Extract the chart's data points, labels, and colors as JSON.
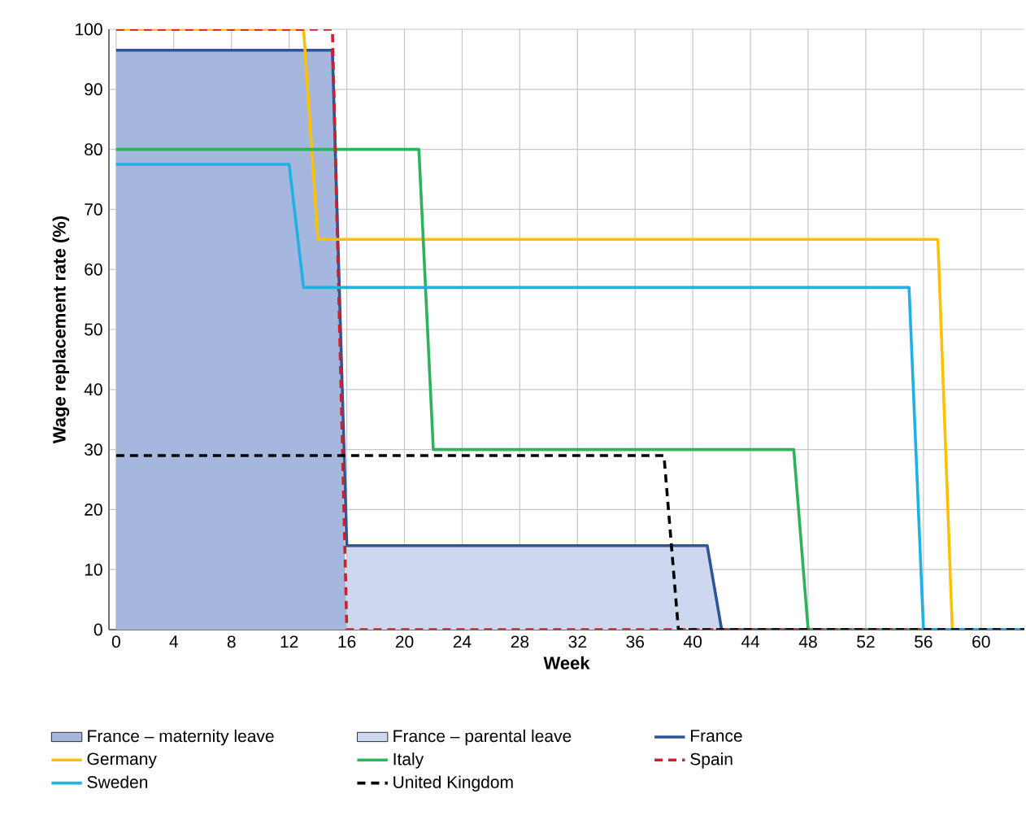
{
  "chart_data": {
    "type": "line",
    "xlabel": "Week",
    "ylabel": "Wage replacement rate (%)",
    "xlim": [
      -0.5,
      63
    ],
    "ylim": [
      0,
      100
    ],
    "xticks": [
      0,
      4,
      8,
      12,
      16,
      20,
      24,
      28,
      32,
      36,
      40,
      44,
      48,
      52,
      56,
      60
    ],
    "yticks": [
      0,
      10,
      20,
      30,
      40,
      50,
      60,
      70,
      80,
      90,
      100
    ],
    "grid": true,
    "legend": "bottom",
    "series": [
      {
        "name": "France – maternity leave",
        "type": "area",
        "color": "#a5b7dd",
        "x": [
          0,
          15,
          16
        ],
        "values": [
          96.5,
          96.5,
          0
        ]
      },
      {
        "name": "France – parental leave",
        "type": "area",
        "color": "#cdd7ee",
        "x": [
          16,
          41,
          42
        ],
        "values": [
          14,
          14,
          0
        ]
      },
      {
        "name": "France",
        "color": "#2f5597",
        "x": [
          0,
          15,
          16,
          41,
          42,
          63
        ],
        "values": [
          96.5,
          96.5,
          14,
          14,
          0,
          0
        ]
      },
      {
        "name": "Germany",
        "color": "#ffc000",
        "x": [
          0,
          13,
          14,
          57,
          58,
          63
        ],
        "values": [
          100,
          100,
          65,
          65,
          0,
          0
        ]
      },
      {
        "name": "Italy",
        "color": "#2db35d",
        "x": [
          0,
          21,
          22,
          47,
          48,
          63
        ],
        "values": [
          80,
          80,
          30,
          30,
          0,
          0
        ]
      },
      {
        "name": "Spain",
        "color": "#c8232c",
        "line_style": "dashed",
        "x": [
          0,
          15,
          16,
          63
        ],
        "values": [
          100,
          100,
          0,
          0
        ]
      },
      {
        "name": "Sweden",
        "color": "#1fb0e6",
        "x": [
          0,
          12,
          13,
          55,
          56,
          63
        ],
        "values": [
          77.5,
          77.5,
          57,
          57,
          0,
          0
        ]
      },
      {
        "name": "United Kingdom",
        "color": "#000000",
        "line_style": "dashed",
        "x": [
          0,
          38,
          39,
          63
        ],
        "values": [
          29,
          29,
          0,
          0
        ]
      }
    ]
  }
}
